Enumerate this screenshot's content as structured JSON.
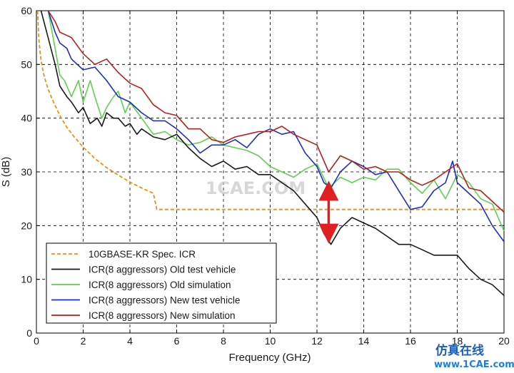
{
  "chart_data": {
    "type": "line",
    "xlabel": "Frequency (GHz)",
    "ylabel": "S (dB)",
    "xlim": [
      0,
      20
    ],
    "ylim": [
      0,
      60
    ],
    "xticks": [
      0,
      2,
      4,
      6,
      8,
      10,
      12,
      14,
      16,
      18,
      20
    ],
    "yticks": [
      0,
      10,
      20,
      30,
      40,
      50,
      60
    ],
    "grid": true,
    "legend_position": "bottom-left",
    "series": [
      {
        "name": "10GBASE-KR Spec. ICR",
        "color": "#e8901a",
        "style": "dashed",
        "x": [
          0.05,
          0.1,
          0.15,
          0.2,
          0.3,
          0.4,
          0.5,
          0.7,
          1.0,
          1.3,
          1.6,
          2.0,
          2.5,
          3.0,
          3.5,
          4.0,
          4.5,
          5.0,
          5.15,
          6.0,
          8.0,
          10.0,
          12.0,
          14.0,
          16.0,
          18.0,
          20.0
        ],
        "values": [
          60.0,
          55.0,
          52.6,
          50.8,
          48.4,
          46.8,
          45.4,
          43.3,
          40.5,
          38.3,
          36.6,
          34.6,
          32.5,
          30.8,
          29.4,
          28.1,
          27.0,
          26.0,
          23.0,
          23.0,
          23.0,
          23.0,
          23.0,
          23.0,
          23.0,
          23.0,
          23.0
        ]
      },
      {
        "name": "ICR(8 aggressors) Old test vehicle",
        "color": "#1a1a1a",
        "style": "solid",
        "x": [
          0.2,
          0.5,
          0.8,
          1.0,
          1.3,
          1.5,
          1.8,
          2.0,
          2.3,
          2.6,
          2.8,
          3.0,
          3.3,
          3.5,
          3.8,
          4.0,
          4.3,
          4.5,
          5.0,
          5.5,
          6.0,
          6.5,
          7.0,
          7.5,
          8.0,
          8.5,
          9.0,
          9.5,
          10.0,
          10.5,
          11.0,
          11.5,
          12.0,
          12.3,
          12.6,
          13.0,
          13.5,
          14.0,
          14.5,
          15.0,
          15.5,
          16.0,
          16.5,
          17.0,
          17.5,
          18.0,
          18.5,
          19.0,
          19.5,
          20.0
        ],
        "values": [
          60,
          55,
          50,
          46,
          44,
          43,
          41,
          42,
          39,
          40,
          38.5,
          41,
          40,
          40,
          38.5,
          39,
          37,
          38,
          36.5,
          36,
          37,
          34.5,
          32.5,
          31,
          32,
          30.5,
          31,
          29.5,
          29.5,
          28,
          26.5,
          24,
          21.5,
          18.5,
          16.5,
          19.5,
          21.5,
          20.5,
          19.5,
          18,
          16.5,
          16.5,
          15.5,
          14.5,
          14.5,
          14.5,
          12,
          10,
          9,
          7
        ]
      },
      {
        "name": "ICR(8 aggressors) Old simulation",
        "color": "#5ed14e",
        "style": "solid",
        "x": [
          0.5,
          0.8,
          1.0,
          1.2,
          1.5,
          1.8,
          2.0,
          2.3,
          2.5,
          2.8,
          3.0,
          3.3,
          3.5,
          3.8,
          4.0,
          4.5,
          5.0,
          5.5,
          6.0,
          6.5,
          7.0,
          7.5,
          8.0,
          8.5,
          9.0,
          9.5,
          10.0,
          10.5,
          11.0,
          11.5,
          12.0,
          12.5,
          13.0,
          13.5,
          14.0,
          14.5,
          15.0,
          15.5,
          16.0,
          16.5,
          17.0,
          17.5,
          18.0,
          18.5,
          19.0,
          19.5,
          20.0
        ],
        "values": [
          60,
          53,
          48,
          47,
          44,
          47,
          43,
          47,
          44,
          40,
          42,
          44,
          45,
          41,
          43,
          40,
          37,
          37.5,
          36,
          35,
          35.5,
          36.5,
          35,
          34.5,
          34,
          33,
          31,
          30,
          29,
          30.5,
          31.5,
          27,
          29,
          28,
          29,
          28.5,
          30.5,
          30.5,
          28,
          26,
          28.5,
          25,
          29.5,
          28,
          25,
          24,
          19
        ]
      },
      {
        "name": "ICR(8 aggressors) New test vehicle",
        "color": "#1f2fb8",
        "style": "solid",
        "x": [
          0.5,
          0.8,
          1.0,
          1.3,
          1.5,
          2.0,
          2.5,
          3.0,
          3.5,
          4.0,
          4.5,
          5.0,
          5.5,
          6.0,
          6.5,
          7.0,
          7.5,
          8.0,
          8.5,
          9.0,
          9.5,
          10.0,
          10.5,
          11.0,
          11.5,
          12.0,
          12.3,
          12.6,
          13.0,
          13.5,
          14.0,
          14.5,
          15.0,
          15.5,
          16.0,
          16.5,
          17.0,
          17.5,
          17.8,
          18.0,
          18.5,
          19.0,
          19.5,
          20.0
        ],
        "values": [
          60,
          56,
          54,
          53,
          51,
          49,
          49.5,
          47,
          44,
          43,
          41,
          39.5,
          39.5,
          38,
          36,
          33.5,
          35,
          35,
          36,
          34.5,
          37,
          38,
          37,
          37.5,
          33.5,
          31,
          28,
          27,
          30,
          32,
          31,
          29.5,
          30,
          26.5,
          23,
          23.5,
          26.5,
          28,
          32,
          28,
          26,
          24,
          20,
          17
        ]
      },
      {
        "name": "ICR(8 aggressors) New simulation",
        "color": "#b5201e",
        "style": "solid",
        "x": [
          0.5,
          0.8,
          1.0,
          1.5,
          2.0,
          2.5,
          3.0,
          3.5,
          4.0,
          4.5,
          5.0,
          5.5,
          6.0,
          6.5,
          7.0,
          7.5,
          8.0,
          8.5,
          9.0,
          9.5,
          10.0,
          10.5,
          11.0,
          11.5,
          12.0,
          12.5,
          13.0,
          13.5,
          14.0,
          14.5,
          15.0,
          15.5,
          16.0,
          16.5,
          17.0,
          17.5,
          18.0,
          18.5,
          19.0,
          19.5,
          20.0
        ],
        "values": [
          60,
          58,
          56,
          55,
          52,
          50,
          51,
          48.5,
          46.5,
          45.5,
          42.5,
          41,
          40.5,
          38,
          38,
          36,
          35.5,
          36.5,
          37,
          37.5,
          37.5,
          38.5,
          37,
          36,
          35,
          30,
          33,
          32,
          30.5,
          31,
          30,
          30,
          28.5,
          27.5,
          28.5,
          30,
          31.5,
          27,
          26.5,
          24.5,
          22.5
        ]
      }
    ],
    "annotations": [
      {
        "type": "double-arrow",
        "color": "#e02020",
        "x": 12.5,
        "y_from": 18.5,
        "y_to": 26.5
      }
    ]
  },
  "watermark": {
    "text": "1CAE.COM"
  },
  "logo": {
    "chinese": "仿真在线",
    "url": "www.1CAE.com"
  }
}
